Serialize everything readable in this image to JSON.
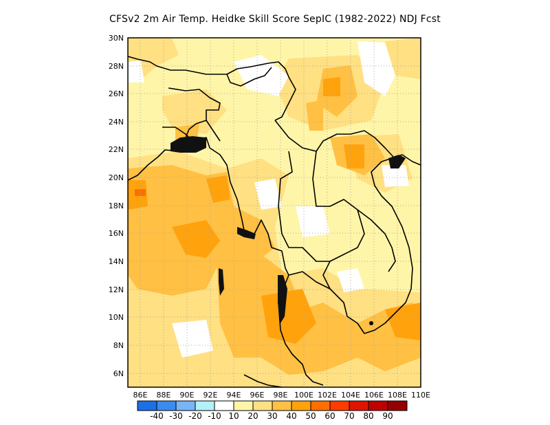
{
  "title": "CFSv2  2m Air Temp. Heidke Skill Score SepIC (1982-2022) NDJ Fcst",
  "map": {
    "lon_range": [
      85,
      110
    ],
    "lat_range": [
      5,
      30
    ],
    "lat_ticks": [
      "6N",
      "8N",
      "10N",
      "12N",
      "14N",
      "16N",
      "18N",
      "20N",
      "22N",
      "24N",
      "26N",
      "28N",
      "30N"
    ],
    "lon_ticks": [
      "86E",
      "88E",
      "90E",
      "92E",
      "94E",
      "96E",
      "98E",
      "100E",
      "102E",
      "104E",
      "106E",
      "108E",
      "110E"
    ],
    "grid": true
  },
  "colorbar": {
    "labels": [
      "-40",
      "-30",
      "-20",
      "-10",
      "10",
      "20",
      "30",
      "40",
      "50",
      "60",
      "70",
      "80",
      "90"
    ],
    "colors": [
      "#1e6fe6",
      "#3c8cf0",
      "#78b4f8",
      "#b4f0fa",
      "#ffffff",
      "#fff5a8",
      "#ffe082",
      "#ffc043",
      "#ffa20c",
      "#ff6e00",
      "#ff3c00",
      "#e01400",
      "#c00000",
      "#960000"
    ]
  },
  "colors": {
    "c10": "#ffffff",
    "c20": "#fff5a8",
    "c30": "#ffe082",
    "c40": "#ffc043",
    "c50": "#ffa20c",
    "c60": "#ff6e00"
  }
}
